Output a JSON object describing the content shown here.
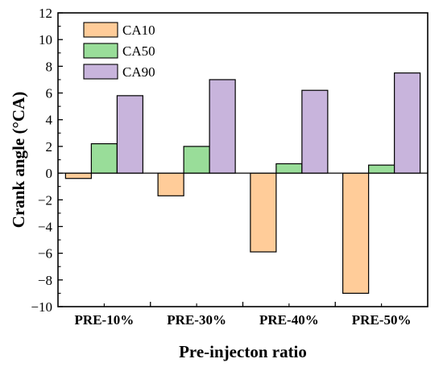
{
  "chart_data": {
    "type": "bar",
    "title": "",
    "xlabel": "Pre-injecton ratio",
    "ylabel": "Crank angle (°CA)",
    "categories": [
      "PRE-10%",
      "PRE-30%",
      "PRE-40%",
      "PRE-50%"
    ],
    "series": [
      {
        "name": "CA10",
        "color": "#FFCC99",
        "values": [
          -0.4,
          -1.7,
          -5.9,
          -9.0
        ]
      },
      {
        "name": "CA50",
        "color": "#99DD99",
        "values": [
          2.2,
          2.0,
          0.7,
          0.6
        ]
      },
      {
        "name": "CA90",
        "color": "#C8B4DC",
        "values": [
          5.8,
          7.0,
          6.2,
          7.5
        ]
      }
    ],
    "ylim": [
      -10,
      12
    ],
    "yticks": [
      -10,
      -8,
      -6,
      -4,
      -2,
      0,
      2,
      4,
      6,
      8,
      10,
      12
    ],
    "grid": false,
    "legend_position": "top-left"
  }
}
